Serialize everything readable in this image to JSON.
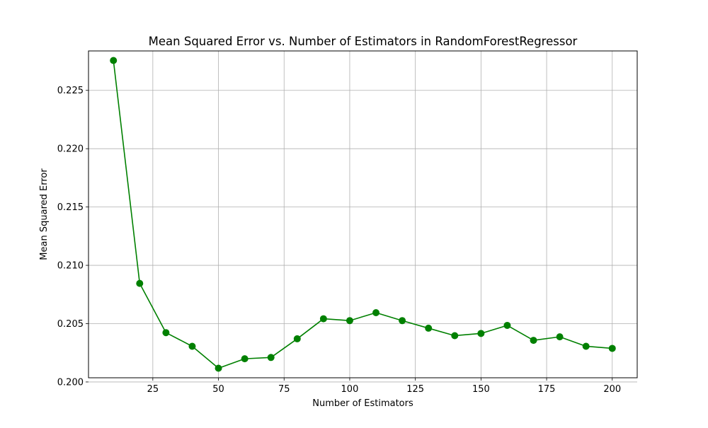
{
  "chart_data": {
    "type": "line",
    "title": "Mean Squared Error vs. Number of Estimators in RandomForestRegressor",
    "xlabel": "Number of Estimators",
    "ylabel": "Mean Squared Error",
    "x": [
      10,
      20,
      30,
      40,
      50,
      60,
      70,
      80,
      90,
      100,
      110,
      120,
      130,
      140,
      150,
      160,
      170,
      180,
      190,
      200
    ],
    "series": [
      {
        "values": [
          0.22756,
          0.20845,
          0.20423,
          0.20306,
          0.20118,
          0.20199,
          0.2021,
          0.2037,
          0.20542,
          0.20526,
          0.20594,
          0.20526,
          0.20461,
          0.20397,
          0.20416,
          0.20485,
          0.20357,
          0.20387,
          0.20306,
          0.20288
        ],
        "color": "#008000",
        "marker": "circle"
      }
    ],
    "xlim": [
      0.5,
      209.5
    ],
    "ylim": [
      0.20036,
      0.22838
    ],
    "xticks": [
      25,
      50,
      75,
      100,
      125,
      150,
      175,
      200
    ],
    "xtick_labels": [
      "25",
      "50",
      "75",
      "100",
      "125",
      "150",
      "175",
      "200"
    ],
    "yticks": [
      0.2,
      0.205,
      0.21,
      0.215,
      0.22,
      0.225
    ],
    "ytick_labels": [
      "0.200",
      "0.205",
      "0.210",
      "0.215",
      "0.220",
      "0.225"
    ],
    "grid": true,
    "legend": false
  }
}
